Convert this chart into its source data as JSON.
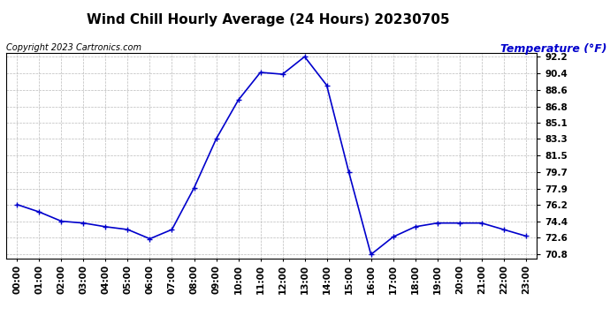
{
  "title": "Wind Chill Hourly Average (24 Hours) 20230705",
  "copyright": "Copyright 2023 Cartronics.com",
  "ylabel": "Temperature (°F)",
  "hours": [
    "00:00",
    "01:00",
    "02:00",
    "03:00",
    "04:00",
    "05:00",
    "06:00",
    "07:00",
    "08:00",
    "09:00",
    "10:00",
    "11:00",
    "12:00",
    "13:00",
    "14:00",
    "15:00",
    "16:00",
    "17:00",
    "18:00",
    "19:00",
    "20:00",
    "21:00",
    "22:00",
    "23:00"
  ],
  "values": [
    76.2,
    75.4,
    74.4,
    74.2,
    73.8,
    73.5,
    72.5,
    73.5,
    78.0,
    83.3,
    87.5,
    90.5,
    90.3,
    92.2,
    89.1,
    79.7,
    70.8,
    72.7,
    73.8,
    74.2,
    74.2,
    74.2,
    73.5,
    72.8
  ],
  "line_color": "#0000cc",
  "marker": "+",
  "marker_size": 5,
  "marker_linewidth": 1.0,
  "linewidth": 1.2,
  "ylim_min": 70.4,
  "ylim_max": 92.6,
  "yticks": [
    70.8,
    72.6,
    74.4,
    76.2,
    77.9,
    79.7,
    81.5,
    83.3,
    85.1,
    86.8,
    88.6,
    90.4,
    92.2
  ],
  "bg_color": "#ffffff",
  "grid_color": "#bbbbbb",
  "title_color": "#000000",
  "copyright_color": "#000000",
  "ylabel_color": "#0000cc",
  "title_fontsize": 11,
  "copyright_fontsize": 7,
  "ylabel_fontsize": 9,
  "tick_fontsize": 7.5
}
